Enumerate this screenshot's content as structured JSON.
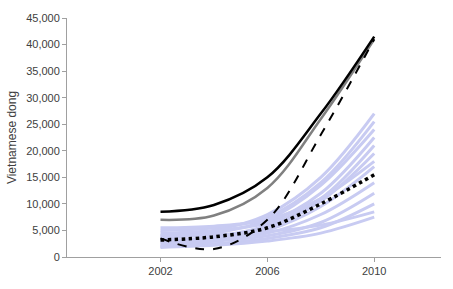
{
  "chart_data": {
    "type": "line",
    "y_label": "Vietnamese dong",
    "x": [
      2002,
      2004,
      2006,
      2008,
      2010
    ],
    "xlim": [
      1998.5,
      2012.5
    ],
    "xticks": [
      2002,
      2006,
      2010
    ],
    "ylim": [
      0,
      45000
    ],
    "yticks": [
      0,
      {
        "value": 5000,
        "label": "5,000"
      },
      {
        "value": 10000,
        "label": "10,000"
      },
      {
        "value": 15000,
        "label": "15,000"
      },
      {
        "value": 20000,
        "label": "20,000"
      },
      {
        "value": 25000,
        "label": "25,000"
      },
      {
        "value": 30000,
        "label": "30,000"
      },
      {
        "value": 35000,
        "label": "35,000"
      },
      {
        "value": 40000,
        "label": "40,000"
      },
      {
        "value": 45000,
        "label": "45,000"
      }
    ],
    "grid": false,
    "series": [
      {
        "color": "#c8cbf2",
        "line_style": "solid",
        "values": [
          4000,
          5000,
          8000,
          15000,
          27000
        ]
      },
      {
        "color": "#c8cbf2",
        "line_style": "solid",
        "values": [
          5000,
          5500,
          7500,
          14000,
          25500
        ]
      },
      {
        "color": "#c8cbf2",
        "line_style": "solid",
        "values": [
          3500,
          4500,
          7000,
          13500,
          24000
        ]
      },
      {
        "color": "#c8cbf2",
        "line_style": "solid",
        "values": [
          4500,
          5000,
          6500,
          12000,
          22500
        ]
      },
      {
        "color": "#c8cbf2",
        "line_style": "solid",
        "values": [
          3000,
          3800,
          6000,
          11000,
          21000
        ]
      },
      {
        "color": "#c8cbf2",
        "line_style": "solid",
        "values": [
          2500,
          3500,
          5500,
          10500,
          19500
        ]
      },
      {
        "color": "#c8cbf2",
        "line_style": "solid",
        "values": [
          5500,
          5800,
          7000,
          11000,
          18000
        ]
      },
      {
        "color": "#c8cbf2",
        "line_style": "solid",
        "values": [
          2000,
          3000,
          5000,
          9500,
          17000
        ]
      },
      {
        "color": "#c8cbf2",
        "line_style": "solid",
        "values": [
          3000,
          3500,
          4500,
          8000,
          14000
        ]
      },
      {
        "color": "#c8cbf2",
        "line_style": "solid",
        "values": [
          2500,
          3000,
          4000,
          6500,
          12000
        ]
      },
      {
        "color": "#c8cbf2",
        "line_style": "solid",
        "values": [
          2000,
          2500,
          3500,
          5500,
          10000
        ]
      },
      {
        "color": "#c8cbf2",
        "line_style": "solid",
        "values": [
          4000,
          4200,
          4800,
          6000,
          8500
        ]
      },
      {
        "color": "#c8cbf2",
        "line_style": "solid",
        "values": [
          1800,
          2200,
          3000,
          4500,
          7500
        ]
      },
      {
        "color": "#808080",
        "line_style": "solid",
        "values": [
          7000,
          7800,
          13000,
          26000,
          41000
        ]
      },
      {
        "color": "#000000",
        "line_style": "solid",
        "values": [
          8500,
          9800,
          15000,
          27000,
          41500
        ]
      },
      {
        "color": "#000000",
        "line_style": "dashed",
        "values": [
          3500,
          1500,
          7000,
          23000,
          41000
        ]
      },
      {
        "color": "#000000",
        "line_style": "dotted",
        "values": [
          3200,
          3800,
          5500,
          10000,
          15500
        ]
      }
    ]
  }
}
